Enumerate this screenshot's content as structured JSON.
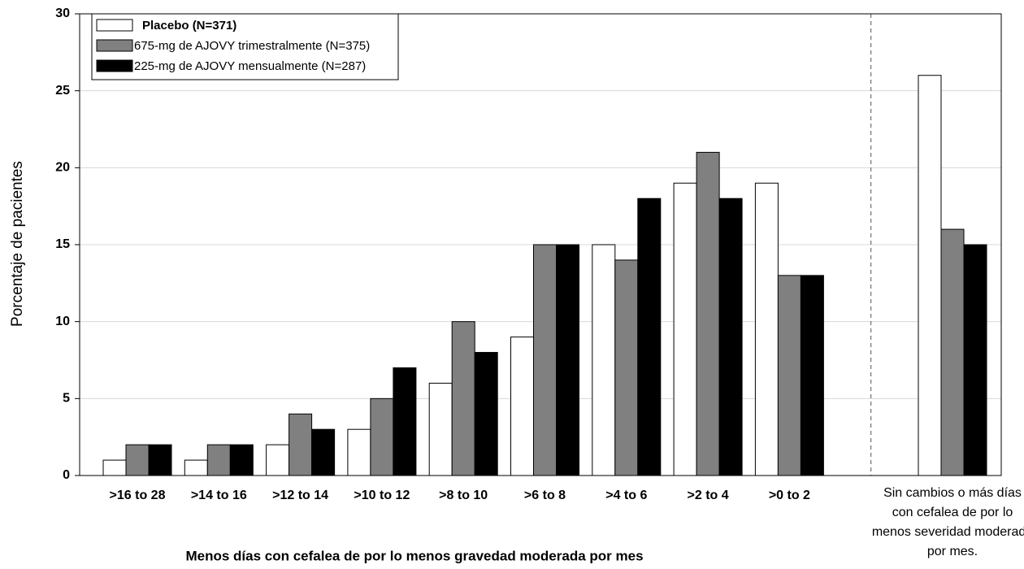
{
  "chart_data": {
    "type": "bar",
    "xlabel": "Menos días con cefalea de por lo menos gravedad moderada por mes",
    "ylabel": "Porcentaje de pacientes",
    "categories": [
      ">16 to 28",
      ">14 to 16",
      ">12 to 14",
      ">10 to 12",
      ">8 to 10",
      ">6 to 8",
      ">4 to 6",
      ">2 to 4",
      ">0 to 2",
      "Sin cambios o más días con cefalea de por lo menos severidad moderada por mes."
    ],
    "series": [
      {
        "name": "Placebo (N=371)",
        "color": "#ffffff",
        "values": [
          1,
          1,
          2,
          3,
          6,
          9,
          15,
          19,
          19,
          26
        ]
      },
      {
        "name": "675-mg de AJOVY trimestralmente (N=375)",
        "color": "#808080",
        "values": [
          2,
          2,
          4,
          5,
          10,
          15,
          14,
          21,
          13,
          16
        ]
      },
      {
        "name": "225-mg de AJOVY mensualmente (N=287)",
        "color": "#000000",
        "values": [
          2,
          2,
          3,
          7,
          8,
          15,
          18,
          18,
          13,
          15
        ]
      }
    ],
    "ylim": [
      0,
      30
    ],
    "yticks": [
      0,
      5,
      10,
      15,
      20,
      25,
      30
    ],
    "grid": true,
    "legend": "upper left"
  }
}
